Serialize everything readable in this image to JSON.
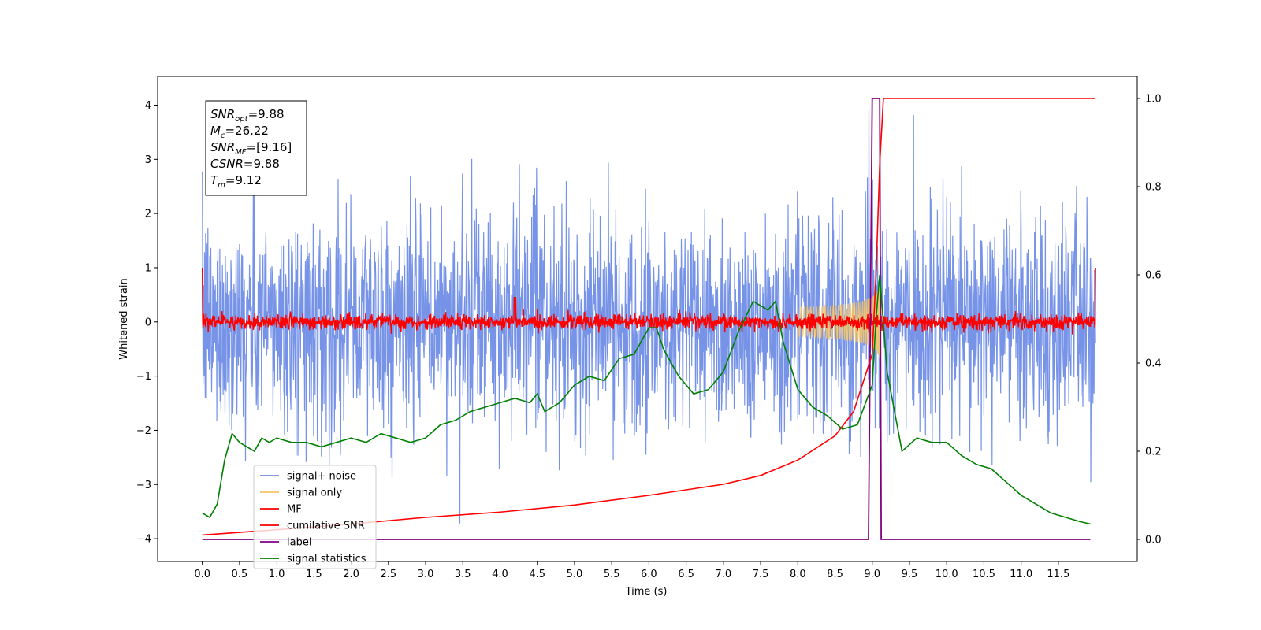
{
  "chart_data": {
    "type": "line",
    "xlabel": "Time (s)",
    "ylabel": "Whitened strain",
    "xlim": [
      -0.6,
      12.56
    ],
    "ylim_left": [
      -4.42,
      4.53
    ],
    "ylim_right": [
      -0.05,
      1.05
    ],
    "x_ticks": [
      0.0,
      0.5,
      1.0,
      1.5,
      2.0,
      2.5,
      3.0,
      3.5,
      4.0,
      4.5,
      5.0,
      5.5,
      6.0,
      6.5,
      7.0,
      7.5,
      8.0,
      8.5,
      9.0,
      9.5,
      10.0,
      10.5,
      11.0,
      11.5
    ],
    "x_tick_labels": [
      "0.0",
      "0.5",
      "1.0",
      "1.5",
      "2.0",
      "2.5",
      "3.0",
      "3.5",
      "4.0",
      "4.5",
      "5.0",
      "5.5",
      "6.0",
      "6.5",
      "7.0",
      "7.5",
      "8.0",
      "8.5",
      "9.0",
      "9.5",
      "10.0",
      "10.5",
      "11.0",
      "11.5"
    ],
    "y_ticks_left": [
      4,
      3,
      2,
      1,
      0,
      -1,
      -2,
      -3,
      -4
    ],
    "y_tick_labels_left": [
      "4",
      "3",
      "2",
      "1",
      "0",
      "−1",
      "−2",
      "−3",
      "−4"
    ],
    "y_ticks_right": [
      1.0,
      0.8,
      0.6,
      0.4,
      0.2,
      0.0
    ],
    "y_tick_labels_right": [
      "1.0",
      "0.8",
      "0.6",
      "0.4",
      "0.2",
      "0.0"
    ],
    "annotation": {
      "lines": [
        {
          "base": "SNR",
          "sub": "opt",
          "value": "=9.88"
        },
        {
          "base": "M",
          "sub": "c",
          "value": "=26.22"
        },
        {
          "base": "SNR",
          "sub": "MF",
          "value": "=[9.16]"
        },
        {
          "base": "CSNR",
          "sub": "",
          "value": "=9.88"
        },
        {
          "base": "T",
          "sub": "m",
          "value": "=9.12"
        }
      ]
    },
    "legend": {
      "placement": "lower-left",
      "entries": [
        {
          "label": "signal+ noise",
          "color": "#6f8de6"
        },
        {
          "label": "signal only",
          "color": "#f5c56a"
        },
        {
          "label": "MF",
          "color": "#ff0000"
        },
        {
          "label": "cumilative SNR",
          "color": "#ff0000"
        },
        {
          "label": "label",
          "color": "#800080"
        },
        {
          "label": "signal statistics",
          "color": "#008000"
        }
      ]
    },
    "series": [
      {
        "name": "signal+ noise",
        "axis": "left",
        "color": "#6f8de6",
        "description": "white gaussian noise, sigma~1, 0 to 12 s",
        "noise_sigma": 1.0,
        "x_range": [
          0.0,
          12.0
        ]
      },
      {
        "name": "signal only",
        "axis": "left",
        "color": "#f5c56a",
        "chirp_merger_time": 9.12,
        "chirp_peak_amplitude": 1.1,
        "x_range": [
          8.0,
          9.3
        ]
      },
      {
        "name": "MF",
        "axis": "left",
        "color": "#ff0000",
        "noise_sigma": 0.07,
        "x_range": [
          0.0,
          12.0
        ],
        "edge_values": [
          1.0,
          1.0
        ]
      },
      {
        "name": "cumilative SNR",
        "axis": "right",
        "color": "#ff0000",
        "x": [
          0.0,
          1.0,
          2.0,
          3.0,
          4.0,
          5.0,
          6.0,
          7.0,
          7.5,
          8.0,
          8.5,
          8.75,
          9.0,
          9.05,
          9.1,
          9.15,
          12.0
        ],
        "y": [
          0.01,
          0.022,
          0.035,
          0.05,
          0.062,
          0.078,
          0.1,
          0.125,
          0.145,
          0.18,
          0.235,
          0.29,
          0.42,
          0.6,
          0.85,
          1.0,
          1.0
        ]
      },
      {
        "name": "label",
        "axis": "right",
        "color": "#800080",
        "x": [
          0.0,
          8.95,
          9.0,
          9.1,
          9.12,
          11.93
        ],
        "y": [
          0.0,
          0.0,
          1.0,
          1.0,
          0.0,
          0.0
        ]
      },
      {
        "name": "signal statistics",
        "axis": "right",
        "color": "#008000",
        "x": [
          0.0,
          0.1,
          0.2,
          0.3,
          0.4,
          0.5,
          0.6,
          0.7,
          0.8,
          0.9,
          1.0,
          1.2,
          1.4,
          1.6,
          1.8,
          2.0,
          2.2,
          2.4,
          2.6,
          2.8,
          3.0,
          3.2,
          3.4,
          3.6,
          3.8,
          4.0,
          4.2,
          4.4,
          4.5,
          4.6,
          4.8,
          5.0,
          5.2,
          5.4,
          5.6,
          5.8,
          6.0,
          6.1,
          6.2,
          6.4,
          6.6,
          6.8,
          7.0,
          7.2,
          7.4,
          7.6,
          7.7,
          7.8,
          8.0,
          8.2,
          8.4,
          8.6,
          8.8,
          9.0,
          9.05,
          9.1,
          9.2,
          9.4,
          9.6,
          9.8,
          10.0,
          10.2,
          10.4,
          10.6,
          10.8,
          11.0,
          11.2,
          11.4,
          11.6,
          11.8,
          11.93
        ],
        "y": [
          0.06,
          0.05,
          0.08,
          0.18,
          0.24,
          0.22,
          0.21,
          0.2,
          0.23,
          0.22,
          0.23,
          0.22,
          0.22,
          0.21,
          0.22,
          0.23,
          0.22,
          0.24,
          0.23,
          0.22,
          0.23,
          0.26,
          0.27,
          0.29,
          0.3,
          0.31,
          0.32,
          0.31,
          0.33,
          0.29,
          0.31,
          0.35,
          0.37,
          0.36,
          0.41,
          0.42,
          0.48,
          0.48,
          0.43,
          0.37,
          0.33,
          0.34,
          0.38,
          0.47,
          0.54,
          0.52,
          0.54,
          0.45,
          0.34,
          0.3,
          0.28,
          0.25,
          0.26,
          0.35,
          0.5,
          0.6,
          0.38,
          0.2,
          0.23,
          0.22,
          0.22,
          0.19,
          0.17,
          0.16,
          0.13,
          0.1,
          0.08,
          0.06,
          0.05,
          0.04,
          0.035
        ]
      }
    ]
  }
}
